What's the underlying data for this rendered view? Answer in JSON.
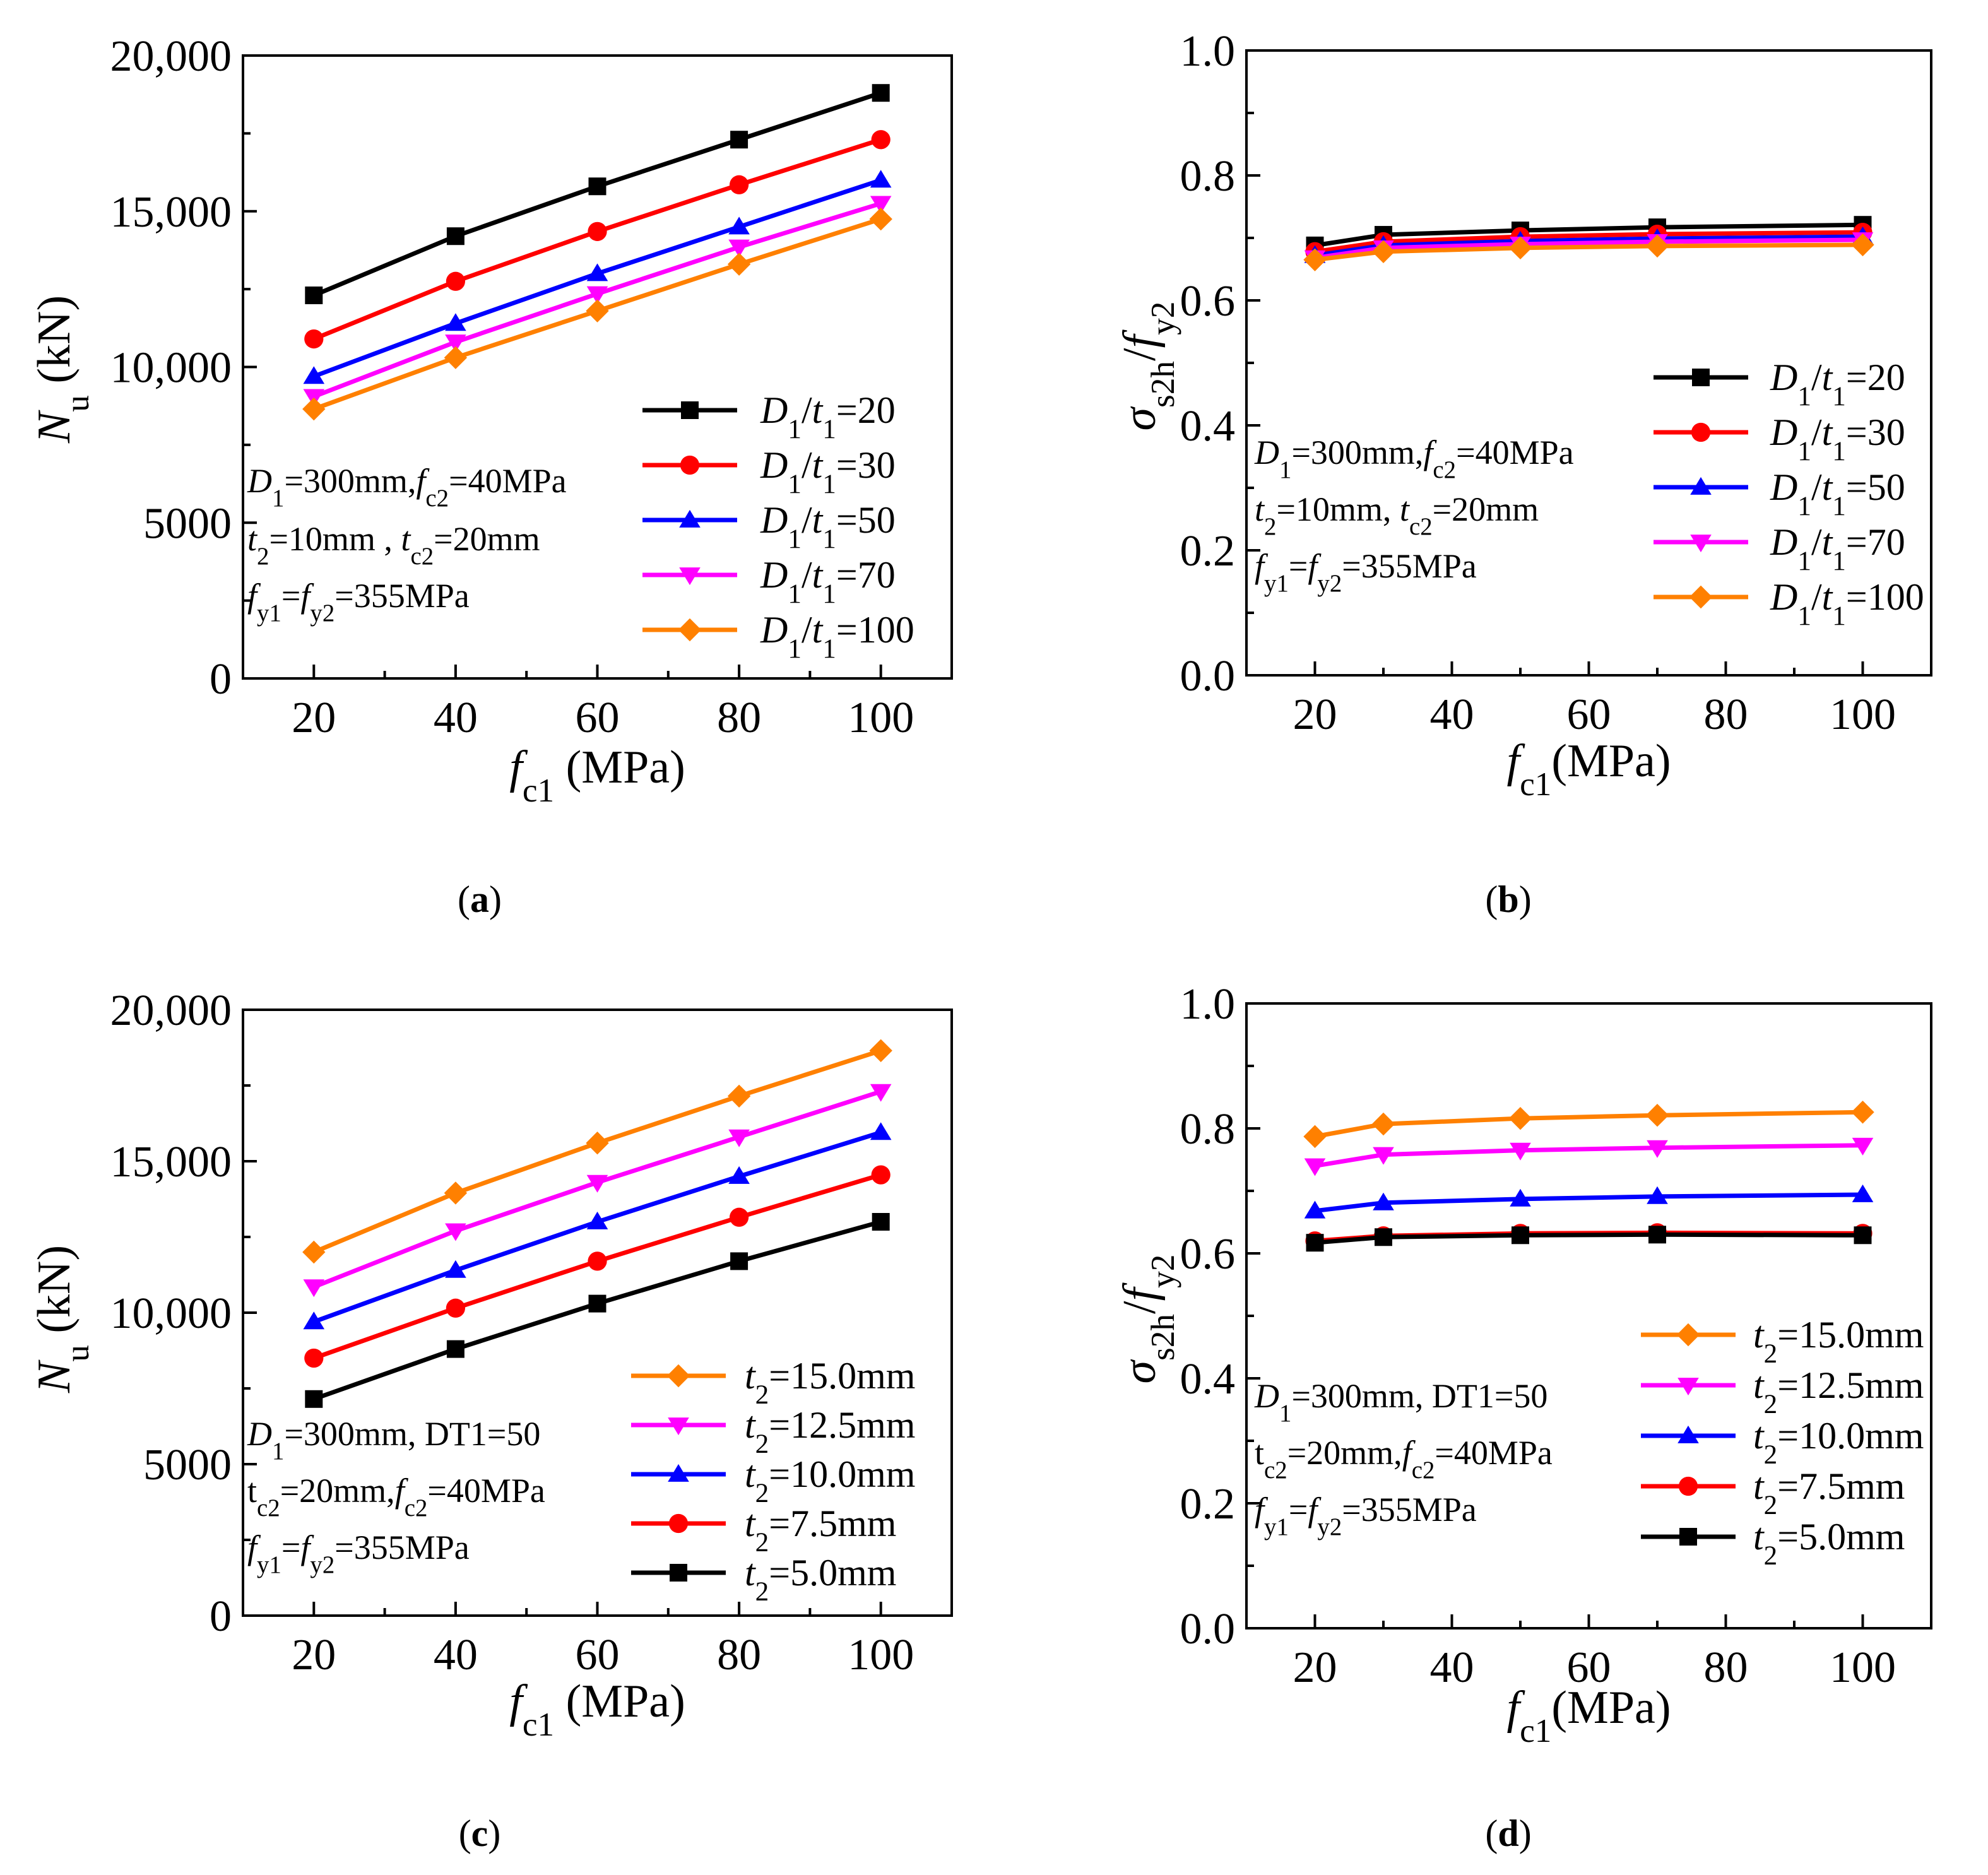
{
  "colors": {
    "black": "#000000",
    "red": "#ff0000",
    "blue": "#0000ff",
    "magenta": "#ff00ff",
    "orange": "#ff8000"
  },
  "chart_data": [
    {
      "panel_label": "(a)",
      "type": "line",
      "x": [
        20,
        40,
        60,
        80,
        100
      ],
      "xlabel": "f_c1 (MPa)",
      "ylabel": "N_u (kN)",
      "xlim": [
        10,
        110
      ],
      "ylim": [
        0,
        20000
      ],
      "xticks": [
        20,
        40,
        60,
        80,
        100
      ],
      "xtick_labels": [
        "20",
        "40",
        "60",
        "80",
        "100"
      ],
      "yticks": [
        0,
        5000,
        10000,
        15000,
        20000
      ],
      "ytick_labels": [
        "0",
        "5000",
        "10,000",
        "15,000",
        "20,000"
      ],
      "legend_position": "lower-right",
      "annotation": [
        "D1=300mm, fc2=40MPa",
        "t2=10mm , tc2=20mm",
        "fy1=fy2=355MPa"
      ],
      "series": [
        {
          "name": "D1/t1=20",
          "color": "#000000",
          "marker": "square",
          "values": [
            12300,
            14200,
            15800,
            17300,
            18800
          ]
        },
        {
          "name": "D1/t1=30",
          "color": "#ff0000",
          "marker": "circle",
          "values": [
            10900,
            12750,
            14350,
            15850,
            17300
          ]
        },
        {
          "name": "D1/t1=50",
          "color": "#0000ff",
          "marker": "triangle-up",
          "values": [
            9700,
            11400,
            13000,
            14500,
            16000
          ]
        },
        {
          "name": "D1/t1=70",
          "color": "#ff00ff",
          "marker": "triangle-down",
          "values": [
            9050,
            10800,
            12350,
            13850,
            15250
          ]
        },
        {
          "name": "D1/t1=100",
          "color": "#ff8000",
          "marker": "diamond",
          "values": [
            8650,
            10300,
            11800,
            13300,
            14750
          ]
        }
      ]
    },
    {
      "panel_label": "(b)",
      "type": "line",
      "x": [
        20,
        30,
        50,
        70,
        100
      ],
      "xlabel": "f_c1(MPa)",
      "ylabel": "σ_s2h/f_y2",
      "xlim": [
        10,
        110
      ],
      "ylim": [
        0,
        1.0
      ],
      "xticks": [
        20,
        40,
        60,
        80,
        100
      ],
      "xtick_labels": [
        "20",
        "40",
        "60",
        "80",
        "100"
      ],
      "yticks": [
        0,
        0.2,
        0.4,
        0.6,
        0.8,
        1.0
      ],
      "ytick_labels": [
        "0.0",
        "0.2",
        "0.4",
        "0.6",
        "0.8",
        "1.0"
      ],
      "legend_position": "right",
      "annotation": [
        "D1=300mm, fc2=40MPa",
        "t2=10mm, tc2=20mm",
        "fy1=fy2=355MPa"
      ],
      "series": [
        {
          "name": "D1/t1=20",
          "color": "#000000",
          "marker": "square",
          "values": [
            0.688,
            0.705,
            0.712,
            0.717,
            0.721
          ]
        },
        {
          "name": "D1/t1=30",
          "color": "#ff0000",
          "marker": "circle",
          "values": [
            0.678,
            0.694,
            0.702,
            0.706,
            0.709
          ]
        },
        {
          "name": "D1/t1=50",
          "color": "#0000ff",
          "marker": "triangle-up",
          "values": [
            0.672,
            0.688,
            0.695,
            0.699,
            0.702
          ]
        },
        {
          "name": "D1/t1=70",
          "color": "#ff00ff",
          "marker": "triangle-down",
          "values": [
            0.668,
            0.684,
            0.69,
            0.694,
            0.697
          ]
        },
        {
          "name": "D1/t1=100",
          "color": "#ff8000",
          "marker": "diamond",
          "values": [
            0.665,
            0.678,
            0.684,
            0.687,
            0.689
          ]
        }
      ]
    },
    {
      "panel_label": "(c)",
      "type": "line",
      "x": [
        20,
        40,
        60,
        80,
        100
      ],
      "xlabel": "f_c1 (MPa)",
      "ylabel": "N_u (kN)",
      "xlim": [
        10,
        110
      ],
      "ylim": [
        0,
        20000
      ],
      "xticks": [
        20,
        40,
        60,
        80,
        100
      ],
      "xtick_labels": [
        "20",
        "40",
        "60",
        "80",
        "100"
      ],
      "yticks": [
        0,
        5000,
        10000,
        15000,
        20000
      ],
      "ytick_labels": [
        "0",
        "5000",
        "10,000",
        "15,000",
        "20,000"
      ],
      "legend_position": "lower-right",
      "annotation": [
        "D1=300mm, DT1=50",
        "tc2=20mm, fc2=40MPa",
        "fy1=fy2=355MPa"
      ],
      "series": [
        {
          "name": "t2=15.0mm",
          "color": "#ff8000",
          "marker": "diamond",
          "values": [
            12000,
            13950,
            15600,
            17150,
            18650
          ]
        },
        {
          "name": "t2=12.5mm",
          "color": "#ff00ff",
          "marker": "triangle-down",
          "values": [
            10850,
            12700,
            14300,
            15800,
            17300
          ]
        },
        {
          "name": "t2=10.0mm",
          "color": "#0000ff",
          "marker": "triangle-up",
          "values": [
            9700,
            11400,
            13000,
            14500,
            15950
          ]
        },
        {
          "name": "t2=7.5mm",
          "color": "#ff0000",
          "marker": "circle",
          "values": [
            8500,
            10150,
            11700,
            13150,
            14550
          ]
        },
        {
          "name": "t2=5.0mm",
          "color": "#000000",
          "marker": "square",
          "values": [
            7150,
            8800,
            10300,
            11700,
            13000
          ]
        }
      ]
    },
    {
      "panel_label": "(d)",
      "type": "line",
      "x": [
        20,
        30,
        50,
        70,
        100
      ],
      "xlabel": "f_c1(MPa)",
      "ylabel": "σ_s2h/f_y2",
      "xlim": [
        10,
        110
      ],
      "ylim": [
        0,
        1.0
      ],
      "xticks": [
        20,
        40,
        60,
        80,
        100
      ],
      "xtick_labels": [
        "20",
        "40",
        "60",
        "80",
        "100"
      ],
      "yticks": [
        0,
        0.2,
        0.4,
        0.6,
        0.8,
        1.0
      ],
      "ytick_labels": [
        "0.0",
        "0.2",
        "0.4",
        "0.6",
        "0.8",
        "1.0"
      ],
      "legend_position": "lower-right",
      "annotation": [
        "D1=300mm, DT1=50",
        "tc2=20mm, fc2=40MPa",
        "fy1=fy2=355MPa"
      ],
      "series": [
        {
          "name": "t2=15.0mm",
          "color": "#ff8000",
          "marker": "diamond",
          "values": [
            0.787,
            0.807,
            0.816,
            0.821,
            0.826
          ]
        },
        {
          "name": "t2=12.5mm",
          "color": "#ff00ff",
          "marker": "triangle-down",
          "values": [
            0.74,
            0.758,
            0.765,
            0.769,
            0.773
          ]
        },
        {
          "name": "t2=10.0mm",
          "color": "#0000ff",
          "marker": "triangle-up",
          "values": [
            0.668,
            0.681,
            0.687,
            0.691,
            0.694
          ]
        },
        {
          "name": "t2=7.5mm",
          "color": "#ff0000",
          "marker": "circle",
          "values": [
            0.62,
            0.628,
            0.632,
            0.633,
            0.632
          ]
        },
        {
          "name": "t2=5.0mm",
          "color": "#000000",
          "marker": "square",
          "values": [
            0.617,
            0.626,
            0.629,
            0.63,
            0.629
          ]
        }
      ]
    }
  ]
}
